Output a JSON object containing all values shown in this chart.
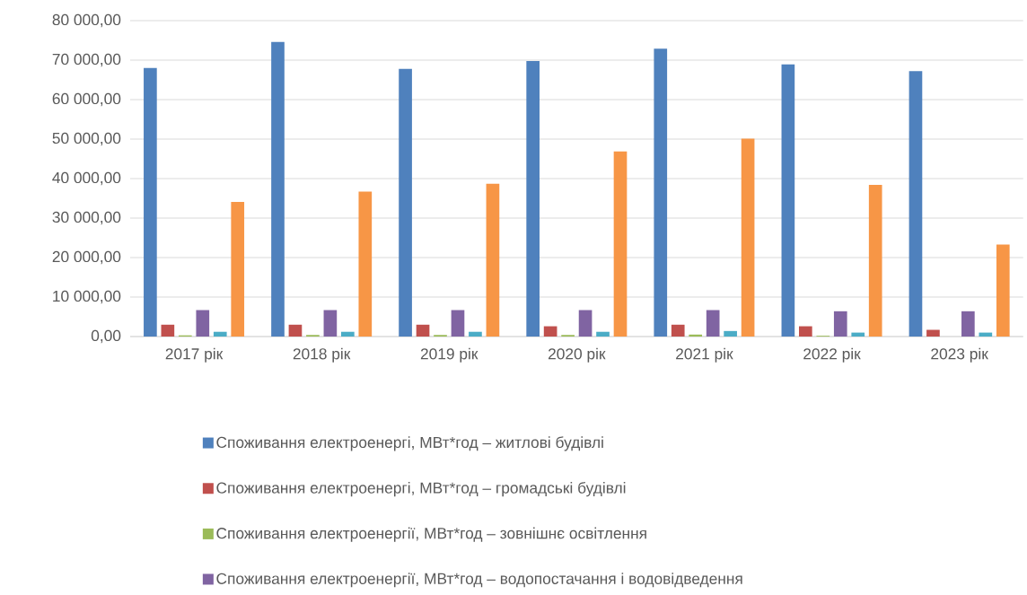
{
  "chart_data": {
    "type": "bar",
    "categories": [
      "2017 рік",
      "2018 рік",
      "2019 рік",
      "2020 рік",
      "2021 рік",
      "2022 рік",
      "2023 рік"
    ],
    "series": [
      {
        "name": "Споживання електроенергі, МВт*год – житлові будівлі",
        "color": "#4f81bd",
        "values": [
          68000,
          74600,
          67800,
          69800,
          72900,
          68900,
          67200
        ]
      },
      {
        "name": "Споживання електроенергі, МВт*год – громадські будівлі",
        "color": "#c0504d",
        "values": [
          3000,
          3000,
          3000,
          2600,
          3000,
          2600,
          1700
        ]
      },
      {
        "name": "Споживання електроенергії, МВт*год – зовнішнє освітлення",
        "color": "#9bbb59",
        "values": [
          300,
          400,
          400,
          400,
          500,
          200,
          null
        ]
      },
      {
        "name": "Споживання електроенергії, МВт*год – водопостачання і водовідведення",
        "color": "#8064a2",
        "values": [
          6700,
          6700,
          6700,
          6700,
          6700,
          6400,
          6400
        ]
      },
      {
        "color": "#4bacc6",
        "values": [
          1200,
          1200,
          1200,
          1200,
          1400,
          1000,
          1000
        ]
      },
      {
        "color": "#f79646",
        "values": [
          34100,
          36700,
          38700,
          46900,
          50100,
          38400,
          23300
        ]
      }
    ],
    "ylim": [
      0,
      80000
    ],
    "yticks": [
      {
        "value": 0,
        "label": "0,00"
      },
      {
        "value": 10000,
        "label": "10 000,00"
      },
      {
        "value": 20000,
        "label": "20 000,00"
      },
      {
        "value": 30000,
        "label": "30 000,00"
      },
      {
        "value": 40000,
        "label": "40 000,00"
      },
      {
        "value": 50000,
        "label": "50 000,00"
      },
      {
        "value": 60000,
        "label": "60 000,00"
      },
      {
        "value": 70000,
        "label": "70 000,00"
      },
      {
        "value": 80000,
        "label": "80 000,00"
      }
    ],
    "grid": "y",
    "legend": "bottom"
  }
}
